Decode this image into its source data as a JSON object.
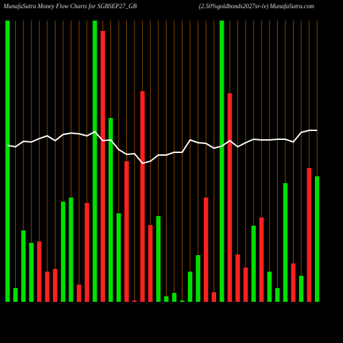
{
  "chart_data": {
    "type": "bar",
    "title": "MunafaSutra  Money Flow  Charts for SGBSEP27_GB",
    "subtitle": "(2.50%goldbonds2027sr-iv) MunafaSutra.com",
    "categories": [
      null,
      null,
      null,
      null,
      null,
      null,
      null,
      null,
      null,
      null,
      null,
      null,
      null,
      null,
      null,
      null,
      null,
      null,
      null,
      null,
      null,
      null,
      null,
      null,
      null,
      null,
      null,
      null,
      null,
      null,
      null,
      null,
      null,
      null,
      null,
      null,
      null,
      null,
      null,
      null
    ],
    "series": [
      {
        "name": null,
        "colors": [
          "#00e000",
          "#00e000",
          "#00e000",
          "#00e000",
          "#ff2020",
          "#ff2020",
          "#ff2020",
          "#00e000",
          "#00e000",
          "#ff2020",
          "#ff2020",
          "#00e000",
          "#ff2020",
          "#00e000",
          "#00e000",
          "#ff2020",
          "#ff2020",
          "#ff2020",
          "#ff2020",
          "#00e000",
          "#00e000",
          "#00e000",
          "#00e000",
          "#00e000",
          "#00e000",
          "#ff2020",
          "#ff2020",
          "#00e000",
          "#ff2020",
          "#ff2020",
          "#ff2020",
          "#00e000",
          "#ff2020",
          "#00e000",
          "#00e000",
          "#00e000",
          "#ff2020",
          "#00e000",
          "#ff2020",
          "#00e000"
        ],
        "values": [
          410,
          20,
          104,
          86,
          88,
          44,
          48,
          146,
          152,
          25,
          144,
          410,
          395,
          268,
          129,
          205,
          2,
          307,
          112,
          125,
          8,
          13,
          2,
          44,
          68,
          152,
          14,
          410,
          304,
          69,
          50,
          111,
          123,
          44,
          20,
          173,
          56,
          38,
          195,
          183
        ]
      },
      {
        "name": null,
        "color": "#ffffff",
        "axis": "y2",
        "values": [
          228,
          226,
          234,
          233,
          238,
          242,
          235,
          244,
          246,
          245,
          242,
          248,
          235,
          236,
          222,
          215,
          216,
          202,
          205,
          214,
          214,
          218,
          218,
          236,
          232,
          231,
          224,
          227,
          235,
          226,
          232,
          237,
          236,
          236,
          237,
          237,
          233,
          247,
          250,
          250
        ]
      }
    ],
    "ylim": [
      0,
      410
    ],
    "y2lim": [
      0,
      410
    ],
    "grid_color": "#8a4a00"
  }
}
